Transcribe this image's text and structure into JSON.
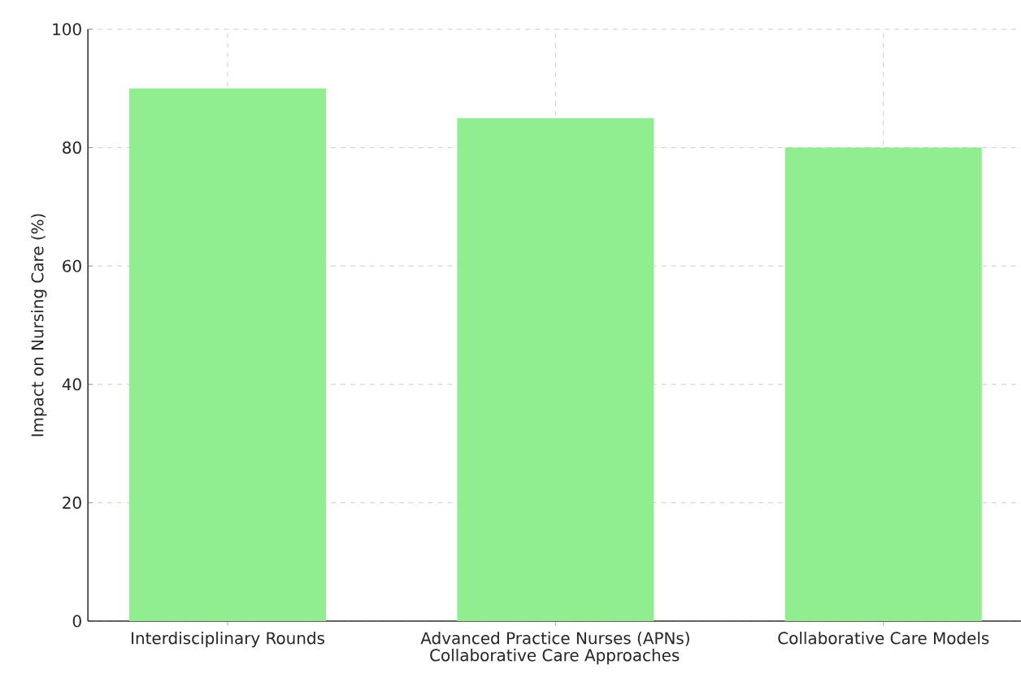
{
  "chart_data": {
    "type": "bar",
    "xlabel": "Collaborative Care Approaches",
    "ylabel": "Impact on Nursing Care (%)",
    "categories": [
      "Interdisciplinary Rounds",
      "Advanced Practice Nurses (APNs)",
      "Collaborative Care Models"
    ],
    "values": [
      90,
      85,
      80
    ],
    "color": "#90ee90",
    "ylim": [
      0,
      100
    ],
    "yticks": [
      0,
      20,
      40,
      60,
      80,
      100
    ],
    "grid": true
  }
}
